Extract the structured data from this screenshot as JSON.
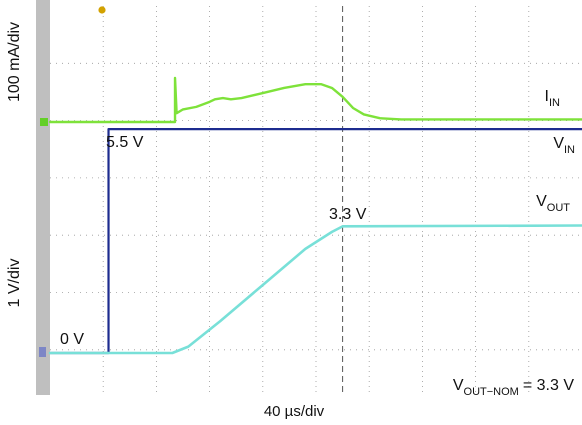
{
  "chart_data": {
    "type": "line",
    "title": "",
    "xlabel": "40 µs/div",
    "x_units": "div",
    "xlim": [
      0,
      10
    ],
    "grid": true,
    "colors": {
      "background": "#ffffff",
      "grid": "#9a9a9a",
      "cursor": "#555555",
      "left_strip": "#bfbfbf",
      "current": "#7ee23a",
      "vin": "#1d2c8f",
      "vout": "#78e0d8"
    },
    "channels": {
      "current": {
        "axis_label": "100 mA/div",
        "series_label_main": "I",
        "series_label_sub": "IN",
        "marker_icon": "ground-marker-green",
        "points": [
          [
            0,
            4.95
          ],
          [
            2.35,
            4.95
          ],
          [
            2.35,
            6.7
          ],
          [
            2.38,
            5.3
          ],
          [
            2.5,
            5.45
          ],
          [
            2.75,
            5.55
          ],
          [
            3.0,
            5.75
          ],
          [
            3.1,
            5.85
          ],
          [
            3.25,
            5.9
          ],
          [
            3.4,
            5.85
          ],
          [
            3.6,
            5.9
          ],
          [
            4.0,
            6.1
          ],
          [
            4.4,
            6.3
          ],
          [
            4.8,
            6.45
          ],
          [
            5.1,
            6.45
          ],
          [
            5.3,
            6.3
          ],
          [
            5.5,
            5.95
          ],
          [
            5.7,
            5.5
          ],
          [
            5.9,
            5.25
          ],
          [
            6.2,
            5.1
          ],
          [
            6.6,
            5.05
          ],
          [
            10,
            5.05
          ]
        ]
      },
      "vin": {
        "series_label_main": "V",
        "series_label_sub": "IN",
        "points": [
          [
            0,
            0
          ],
          [
            1.1,
            0
          ],
          [
            1.1,
            4.55
          ],
          [
            10,
            4.55
          ]
        ],
        "level_labels": {
          "low": "0 V",
          "high": "5.5 V"
        }
      },
      "vout": {
        "axis_label": "1 V/div",
        "series_label_main": "V",
        "series_label_sub": "OUT",
        "marker_icon": "ground-marker-blue",
        "points": [
          [
            0,
            0
          ],
          [
            2.3,
            0
          ],
          [
            2.6,
            0.15
          ],
          [
            3.2,
            0.75
          ],
          [
            4.0,
            1.6
          ],
          [
            4.8,
            2.45
          ],
          [
            5.3,
            2.85
          ],
          [
            5.5,
            2.98
          ],
          [
            10,
            3.0
          ]
        ],
        "level_label": "3.3 V"
      }
    },
    "cursor": {
      "x": 5.5
    },
    "annotations": {
      "nominal_main": "V",
      "nominal_sub": "OUT−NOM",
      "nominal_value": "= 3.3 V"
    }
  }
}
